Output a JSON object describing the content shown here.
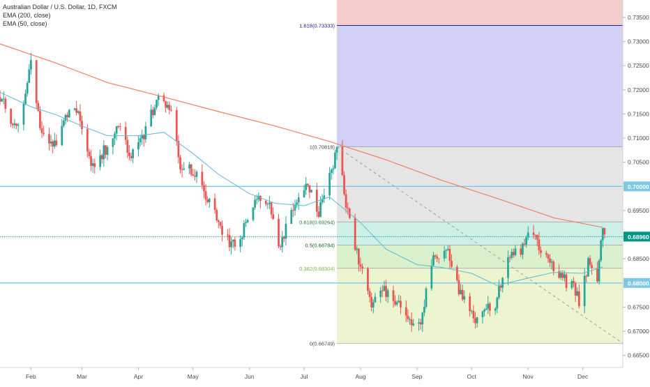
{
  "legend": {
    "title": "Australian Dollar / U.S. Dollar, 1D, FXCM",
    "ema200": "EMA (200, close)",
    "ema50": "EMA (50, close)"
  },
  "colors": {
    "up": "#26a69a",
    "down": "#ef5350",
    "ema200": "#f08060",
    "ema50": "#5bbcd6",
    "horizontal_line": "#7ec8e3",
    "price_badge": "#009688",
    "trend_line": "#9e9e9e",
    "fib_618_line": "#1a237e"
  },
  "chart_data": {
    "type": "candlestick",
    "symbol": "AUDUSD",
    "timeframe": "1D",
    "y_range": [
      0.6625,
      0.7386
    ],
    "x_range": [
      "2019-01-15",
      "2019-12-23"
    ],
    "x_ticks": [
      {
        "label": "Feb",
        "date": "2019-02-01"
      },
      {
        "label": "Mar",
        "date": "2019-03-01"
      },
      {
        "label": "Apr",
        "date": "2019-04-01"
      },
      {
        "label": "May",
        "date": "2019-05-01"
      },
      {
        "label": "Jun",
        "date": "2019-06-01"
      },
      {
        "label": "Jul",
        "date": "2019-07-01"
      },
      {
        "label": "Aug",
        "date": "2019-08-01"
      },
      {
        "label": "Sep",
        "date": "2019-09-01"
      },
      {
        "label": "Oct",
        "date": "2019-10-01"
      },
      {
        "label": "Nov",
        "date": "2019-11-01"
      },
      {
        "label": "Dec",
        "date": "2019-12-01"
      }
    ],
    "y_ticks": [
      {
        "label": "0.73500",
        "value": 0.735
      },
      {
        "label": "0.73000",
        "value": 0.73
      },
      {
        "label": "0.72500",
        "value": 0.725
      },
      {
        "label": "0.72000",
        "value": 0.72
      },
      {
        "label": "0.71500",
        "value": 0.715
      },
      {
        "label": "0.71000",
        "value": 0.71
      },
      {
        "label": "0.70500",
        "value": 0.705
      },
      {
        "label": "0.69500",
        "value": 0.695
      },
      {
        "label": "0.68500",
        "value": 0.685
      },
      {
        "label": "0.67500",
        "value": 0.675
      },
      {
        "label": "0.67000",
        "value": 0.67
      },
      {
        "label": "0.66500",
        "value": 0.665
      }
    ],
    "horizontal_lines": [
      {
        "value": 0.7,
        "label": "0.70000"
      },
      {
        "value": 0.68,
        "label": "0.68000"
      }
    ],
    "last_price": {
      "value": 0.6896,
      "label": "0.68960"
    },
    "fibonacci": {
      "start_date": "2019-07-19",
      "end_date": "2019-12-23",
      "levels": [
        {
          "ratio": 1.618,
          "value": 0.73333,
          "label": "1.618(0.73333)",
          "fill": "#f5cccc",
          "text_color": "#1a237e"
        },
        {
          "ratio": 1.0,
          "value": 0.70818,
          "label": "1(0.70818)",
          "fill": "#d1d1f7",
          "text_color": "#4a4a4a"
        },
        {
          "ratio": 0.618,
          "value": 0.69264,
          "label": "0.618(0.69264)",
          "fill": "#e5e5e5",
          "text_color": "#2e7d32"
        },
        {
          "ratio": 0.5,
          "value": 0.68784,
          "label": "0.5(0.68784)",
          "fill": "#ccefe6",
          "text_color": "#1b5e20"
        },
        {
          "ratio": 0.382,
          "value": 0.68304,
          "label": "0.382(0.68304)",
          "fill": "#d9f0cc",
          "text_color": "#7cb342"
        },
        {
          "ratio": 0.0,
          "value": 0.66749,
          "label": "0(0.66749)",
          "fill": "#ecf5d0",
          "text_color": "#4a4a4a"
        }
      ]
    },
    "trend_line": {
      "from": {
        "date": "2019-07-19",
        "value": 0.7082
      },
      "to": {
        "date": "2019-12-23",
        "value": 0.6675
      }
    },
    "ema200": [
      {
        "date": "2019-01-15",
        "value": 0.7295
      },
      {
        "date": "2019-02-15",
        "value": 0.7255
      },
      {
        "date": "2019-03-15",
        "value": 0.7215
      },
      {
        "date": "2019-04-15",
        "value": 0.7185
      },
      {
        "date": "2019-05-15",
        "value": 0.7155
      },
      {
        "date": "2019-06-15",
        "value": 0.7125
      },
      {
        "date": "2019-07-15",
        "value": 0.7093
      },
      {
        "date": "2019-08-15",
        "value": 0.7055
      },
      {
        "date": "2019-09-15",
        "value": 0.7012
      },
      {
        "date": "2019-10-15",
        "value": 0.6975
      },
      {
        "date": "2019-11-15",
        "value": 0.6935
      },
      {
        "date": "2019-12-12",
        "value": 0.6915
      }
    ],
    "ema50": [
      {
        "date": "2019-01-15",
        "value": 0.7195
      },
      {
        "date": "2019-02-01",
        "value": 0.7165
      },
      {
        "date": "2019-02-15",
        "value": 0.7148
      },
      {
        "date": "2019-03-01",
        "value": 0.7125
      },
      {
        "date": "2019-03-15",
        "value": 0.7105
      },
      {
        "date": "2019-04-01",
        "value": 0.7105
      },
      {
        "date": "2019-04-15",
        "value": 0.7112
      },
      {
        "date": "2019-05-01",
        "value": 0.7068
      },
      {
        "date": "2019-05-15",
        "value": 0.7025
      },
      {
        "date": "2019-06-01",
        "value": 0.6985
      },
      {
        "date": "2019-06-15",
        "value": 0.6965
      },
      {
        "date": "2019-07-01",
        "value": 0.696
      },
      {
        "date": "2019-07-15",
        "value": 0.6978
      },
      {
        "date": "2019-08-01",
        "value": 0.6925
      },
      {
        "date": "2019-08-15",
        "value": 0.687
      },
      {
        "date": "2019-09-01",
        "value": 0.6838
      },
      {
        "date": "2019-09-15",
        "value": 0.6832
      },
      {
        "date": "2019-10-01",
        "value": 0.682
      },
      {
        "date": "2019-10-15",
        "value": 0.6795
      },
      {
        "date": "2019-11-01",
        "value": 0.681
      },
      {
        "date": "2019-11-15",
        "value": 0.6822
      },
      {
        "date": "2019-12-01",
        "value": 0.682
      },
      {
        "date": "2019-12-12",
        "value": 0.6833
      }
    ],
    "price_path": [
      {
        "date": "2019-01-15",
        "value": 0.7185
      },
      {
        "date": "2019-01-25",
        "value": 0.7115
      },
      {
        "date": "2019-02-01",
        "value": 0.726
      },
      {
        "date": "2019-02-07",
        "value": 0.71
      },
      {
        "date": "2019-02-13",
        "value": 0.708
      },
      {
        "date": "2019-02-21",
        "value": 0.715
      },
      {
        "date": "2019-02-27",
        "value": 0.7155
      },
      {
        "date": "2019-03-07",
        "value": 0.704
      },
      {
        "date": "2019-03-12",
        "value": 0.7065
      },
      {
        "date": "2019-03-21",
        "value": 0.712
      },
      {
        "date": "2019-03-28",
        "value": 0.706
      },
      {
        "date": "2019-04-05",
        "value": 0.7115
      },
      {
        "date": "2019-04-12",
        "value": 0.7185
      },
      {
        "date": "2019-04-18",
        "value": 0.7165
      },
      {
        "date": "2019-04-24",
        "value": 0.704
      },
      {
        "date": "2019-05-01",
        "value": 0.703
      },
      {
        "date": "2019-05-08",
        "value": 0.6985
      },
      {
        "date": "2019-05-16",
        "value": 0.692
      },
      {
        "date": "2019-05-22",
        "value": 0.688
      },
      {
        "date": "2019-05-29",
        "value": 0.691
      },
      {
        "date": "2019-06-06",
        "value": 0.698
      },
      {
        "date": "2019-06-12",
        "value": 0.6975
      },
      {
        "date": "2019-06-17",
        "value": 0.687
      },
      {
        "date": "2019-06-25",
        "value": 0.695
      },
      {
        "date": "2019-07-02",
        "value": 0.7015
      },
      {
        "date": "2019-07-09",
        "value": 0.695
      },
      {
        "date": "2019-07-15",
        "value": 0.7025
      },
      {
        "date": "2019-07-19",
        "value": 0.7075
      },
      {
        "date": "2019-07-26",
        "value": 0.6925
      },
      {
        "date": "2019-08-02",
        "value": 0.682
      },
      {
        "date": "2019-08-07",
        "value": 0.676
      },
      {
        "date": "2019-08-13",
        "value": 0.679
      },
      {
        "date": "2019-08-20",
        "value": 0.676
      },
      {
        "date": "2019-08-26",
        "value": 0.673
      },
      {
        "date": "2019-09-03",
        "value": 0.672
      },
      {
        "date": "2019-09-10",
        "value": 0.685
      },
      {
        "date": "2019-09-17",
        "value": 0.6875
      },
      {
        "date": "2019-09-24",
        "value": 0.679
      },
      {
        "date": "2019-10-02",
        "value": 0.6725
      },
      {
        "date": "2019-10-07",
        "value": 0.674
      },
      {
        "date": "2019-10-14",
        "value": 0.676
      },
      {
        "date": "2019-10-21",
        "value": 0.685
      },
      {
        "date": "2019-10-28",
        "value": 0.687
      },
      {
        "date": "2019-11-01",
        "value": 0.6905
      },
      {
        "date": "2019-11-07",
        "value": 0.688
      },
      {
        "date": "2019-11-12",
        "value": 0.684
      },
      {
        "date": "2019-11-19",
        "value": 0.681
      },
      {
        "date": "2019-11-26",
        "value": 0.679
      },
      {
        "date": "2019-11-29",
        "value": 0.6765
      },
      {
        "date": "2019-12-04",
        "value": 0.684
      },
      {
        "date": "2019-12-09",
        "value": 0.6815
      },
      {
        "date": "2019-12-11",
        "value": 0.6875
      },
      {
        "date": "2019-12-12",
        "value": 0.69
      },
      {
        "date": "2019-12-13",
        "value": 0.6896
      }
    ]
  }
}
